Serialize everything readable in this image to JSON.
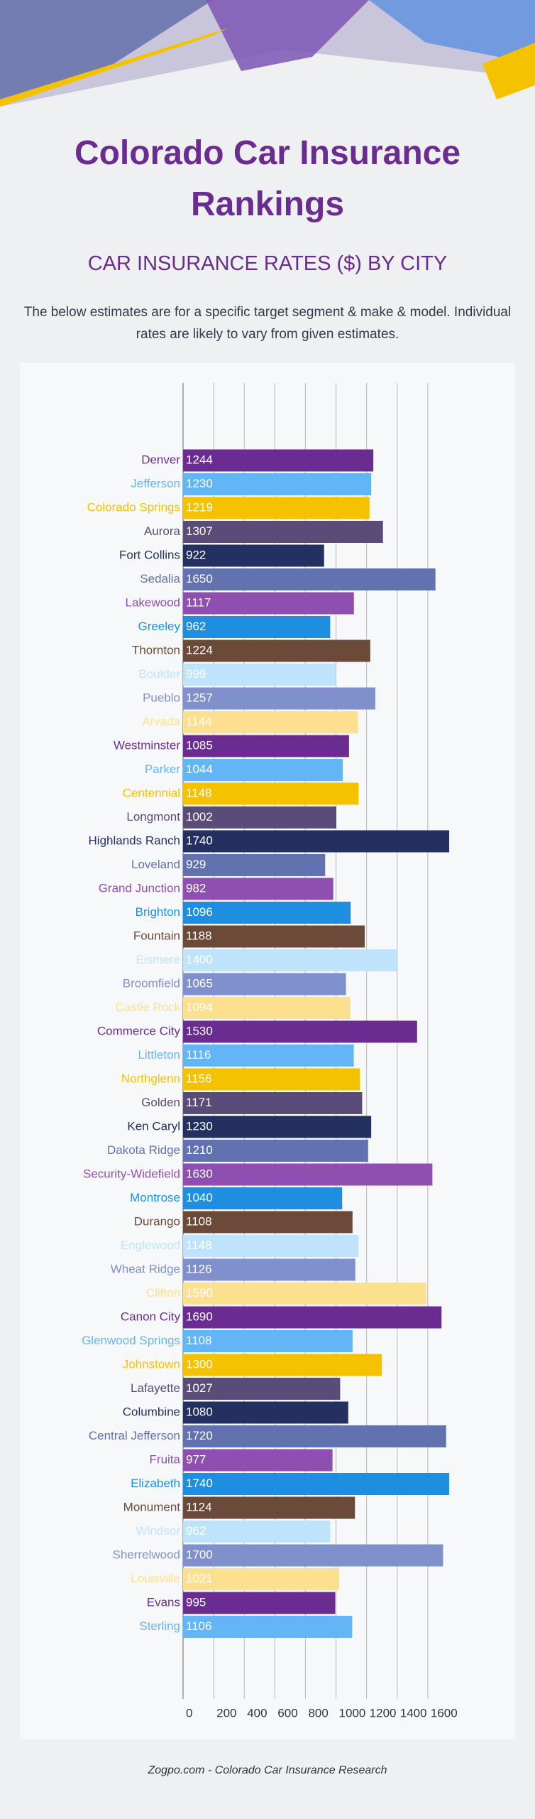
{
  "header": {
    "title": "Colorado Car Insurance Rankings",
    "subtitle": "CAR INSURANCE RATES ($) BY CITY",
    "description": "The below estimates are for a specific target segment & make & model. Individual rates are likely to vary from given estimates."
  },
  "chart_data": {
    "type": "bar",
    "orientation": "horizontal",
    "categories": [
      "Denver",
      "Jefferson",
      "Colorado Springs",
      "Aurora",
      "Fort Collins",
      "Sedalia",
      "Lakewood",
      "Greeley",
      "Thornton",
      "Boulder",
      "Pueblo",
      "Arvada",
      "Westminster",
      "Parker",
      "Centennial",
      "Longmont",
      "Highlands Ranch",
      "Loveland",
      "Grand Junction",
      "Brighton",
      "Fountain",
      "Eismere",
      "Broomfield",
      "Castle Rock",
      "Commerce City",
      "Littleton",
      "Northglenn",
      "Golden",
      "Ken Caryl",
      "Dakota Ridge",
      "Security-Widefield",
      "Montrose",
      "Durango",
      "Englewood",
      "Wheat Ridge",
      "Clifton",
      "Canon City",
      "Glenwood Springs",
      "Johnstown",
      "Lafayette",
      "Columbine",
      "Central Jefferson",
      "Fruita",
      "Elizabeth",
      "Monument",
      "Windsor",
      "Sherrelwood",
      "Louisville",
      "Evans",
      "Sterling"
    ],
    "values": [
      1244,
      1230,
      1219,
      1307,
      922,
      1650,
      1117,
      962,
      1224,
      999,
      1257,
      1144,
      1085,
      1044,
      1148,
      1002,
      1740,
      929,
      982,
      1096,
      1188,
      1400,
      1065,
      1094,
      1530,
      1116,
      1156,
      1171,
      1230,
      1210,
      1630,
      1040,
      1108,
      1148,
      1126,
      1590,
      1690,
      1108,
      1300,
      1027,
      1080,
      1720,
      977,
      1740,
      1124,
      962,
      1700,
      1021,
      995,
      1106
    ],
    "colors": [
      "#6a2c91",
      "#64b5f6",
      "#f5c200",
      "#5b4b78",
      "#233060",
      "#6272b0",
      "#8e4fb0",
      "#1e8fe0",
      "#6b4a3a",
      "#bfe3fb",
      "#8090cc",
      "#fde08f",
      "#6a2c91",
      "#64b5f6",
      "#f5c200",
      "#5b4b78",
      "#233060",
      "#6272b0",
      "#8e4fb0",
      "#1e8fe0",
      "#6b4a3a",
      "#bfe3fb",
      "#8090cc",
      "#fde08f",
      "#6a2c91",
      "#64b5f6",
      "#f5c200",
      "#5b4b78",
      "#233060",
      "#6272b0",
      "#8e4fb0",
      "#1e8fe0",
      "#6b4a3a",
      "#bfe3fb",
      "#8090cc",
      "#fde08f",
      "#6a2c91",
      "#64b5f6",
      "#f5c200",
      "#5b4b78",
      "#233060",
      "#6272b0",
      "#8e4fb0",
      "#1e8fe0",
      "#6b4a3a",
      "#bfe3fb",
      "#8090cc",
      "#fde08f",
      "#6a2c91",
      "#64b5f6"
    ],
    "xlim": [
      0,
      1800
    ],
    "xticks": [
      0,
      200,
      400,
      600,
      800,
      1000,
      1200,
      1400,
      1600
    ],
    "grid": true
  },
  "footer": "Zogpo.com - Colorado Car Insurance Research"
}
